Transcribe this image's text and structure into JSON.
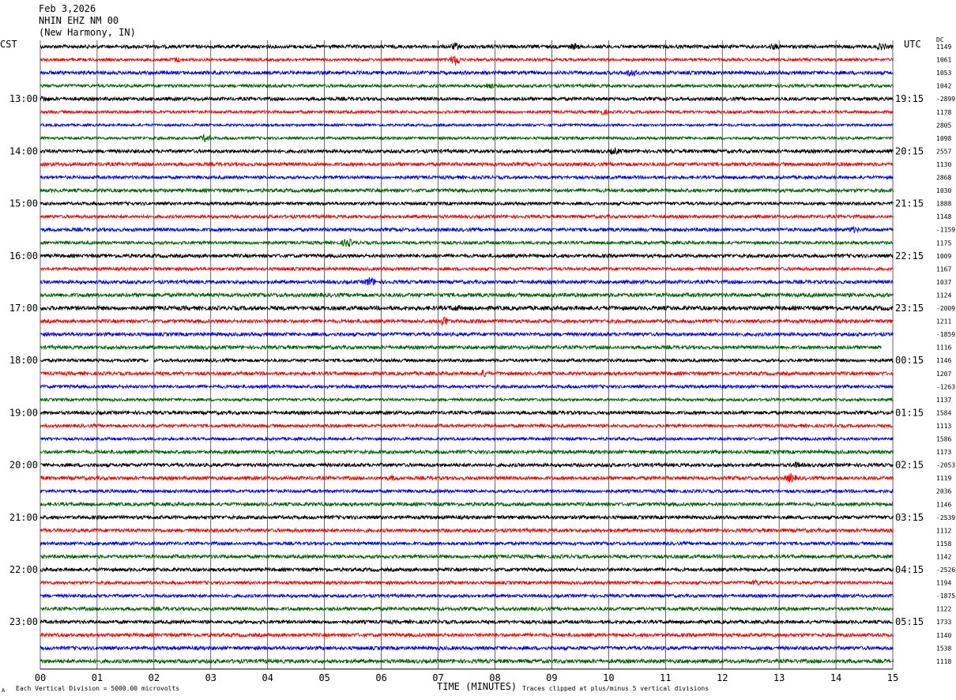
{
  "header": {
    "date": "Feb 3,2026",
    "station": "NHIN EHZ NM 00",
    "location": "(New Harmony, IN)",
    "left_tz": "CST",
    "right_tz": "UTC",
    "dc_label": "DC"
  },
  "footer": {
    "scale_note": "Each Vertical Division = 5000.00 microvolts",
    "clip_note": "Traces clipped at plus/minus 5 vertical divisions",
    "corner_mark": "A"
  },
  "colors": {
    "cycle": [
      "#000000",
      "#ff0000",
      "#0000ff",
      "#006400"
    ],
    "grid": "#000000"
  },
  "chart_data": {
    "type": "line",
    "xlabel": "TIME (MINUTES)",
    "xlim": [
      0,
      15
    ],
    "x_ticks": [
      "00",
      "01",
      "02",
      "03",
      "04",
      "05",
      "06",
      "07",
      "08",
      "09",
      "10",
      "11",
      "12",
      "13",
      "14",
      "15"
    ],
    "left_hour_labels": [
      "13:00",
      "14:00",
      "15:00",
      "16:00",
      "17:00",
      "18:00",
      "19:00",
      "20:00",
      "21:00",
      "22:00",
      "23:00"
    ],
    "right_hour_labels": [
      "19:15",
      "20:15",
      "21:15",
      "22:15",
      "23:15",
      "00:15",
      "01:15",
      "02:15",
      "03:15",
      "04:15",
      "05:15"
    ],
    "rows_per_hour": 4,
    "row_count": 48,
    "dc_values": [
      "1149",
      "1061",
      "1053",
      "1042",
      "-2899",
      "1178",
      "2805",
      "1098",
      "2557",
      "1130",
      "2868",
      "1030",
      "1888",
      "1148",
      "-1159",
      "1175",
      "1009",
      "1167",
      "1037",
      "1124",
      "-2009",
      "1211",
      "-1859",
      "1116",
      "1146",
      "1207",
      "-1263",
      "1137",
      "1584",
      "1113",
      "1586",
      "1173",
      "-2053",
      "1119",
      "2036",
      "1146",
      "-2539",
      "1112",
      "1158",
      "1142",
      "-2526",
      "1194",
      "-1875",
      "1122",
      "1733",
      "1140",
      "1538",
      "1118"
    ],
    "amplitude_levels": [
      0.5,
      0.4,
      0.5,
      0.45,
      0.5,
      0.4,
      0.35,
      0.4,
      0.5,
      0.5,
      0.45,
      0.5,
      0.45,
      0.45,
      0.5,
      0.45,
      0.5,
      0.45,
      0.5,
      0.55,
      0.6,
      0.5,
      0.5,
      0.5,
      0.45,
      0.5,
      0.45,
      0.4,
      0.5,
      0.45,
      0.4,
      0.5,
      0.5,
      0.5,
      0.45,
      0.5,
      0.5,
      0.5,
      0.45,
      0.5,
      0.5,
      0.45,
      0.45,
      0.5,
      0.5,
      0.5,
      0.5,
      0.55
    ],
    "events": [
      {
        "row": 0,
        "minute": 7.3,
        "level": 1.2
      },
      {
        "row": 0,
        "minute": 9.4,
        "level": 1.0
      },
      {
        "row": 0,
        "minute": 12.9,
        "level": 1.0
      },
      {
        "row": 0,
        "minute": 14.8,
        "level": 1.1
      },
      {
        "row": 1,
        "minute": 2.4,
        "level": 0.9
      },
      {
        "row": 1,
        "minute": 7.3,
        "level": 1.8
      },
      {
        "row": 2,
        "minute": 10.4,
        "level": 1.4
      },
      {
        "row": 3,
        "minute": 7.9,
        "level": 1.0
      },
      {
        "row": 4,
        "minute": 0.05,
        "level": 1.0
      },
      {
        "row": 5,
        "minute": 9.9,
        "level": 0.9
      },
      {
        "row": 7,
        "minute": 2.9,
        "level": 1.2
      },
      {
        "row": 8,
        "minute": 10.1,
        "level": 1.1
      },
      {
        "row": 14,
        "minute": 14.3,
        "level": 1.0
      },
      {
        "row": 15,
        "minute": 5.4,
        "level": 1.5
      },
      {
        "row": 18,
        "minute": 5.8,
        "level": 1.6
      },
      {
        "row": 20,
        "minute": 7.3,
        "level": 1.0
      },
      {
        "row": 21,
        "minute": 7.1,
        "level": 1.6
      },
      {
        "row": 25,
        "minute": 7.8,
        "level": 1.2
      },
      {
        "row": 32,
        "minute": 13.3,
        "level": 1.0
      },
      {
        "row": 33,
        "minute": 13.2,
        "level": 1.5
      },
      {
        "row": 33,
        "minute": 6.2,
        "level": 0.8
      },
      {
        "row": 41,
        "minute": 12.6,
        "level": 0.9
      }
    ],
    "gaps": [
      {
        "row": 23,
        "from_minute": 14.8,
        "to_minute": 15
      },
      {
        "row": 24,
        "from_minute": 1.9,
        "to_minute": 2.0
      }
    ]
  }
}
